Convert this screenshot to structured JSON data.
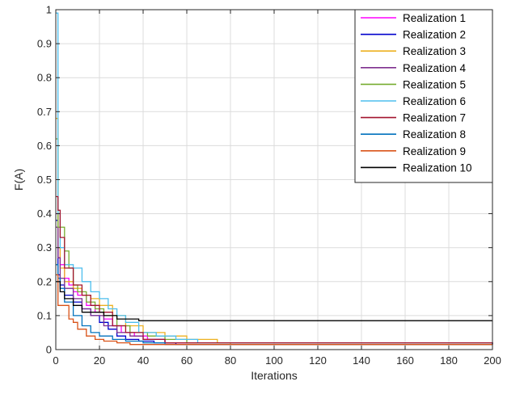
{
  "chart_data": {
    "type": "line",
    "title": "",
    "xlabel": "Iterations",
    "ylabel": "F(A)",
    "xlim": [
      0,
      200
    ],
    "ylim": [
      0,
      1
    ],
    "xticks": [
      0,
      20,
      40,
      60,
      80,
      100,
      120,
      140,
      160,
      180,
      200
    ],
    "yticks": [
      0,
      0.1,
      0.2,
      0.3,
      0.4,
      0.5,
      0.6,
      0.7,
      0.8,
      0.9,
      1
    ],
    "ytick_labels": [
      "0",
      "0.1",
      "0.2",
      "0.3",
      "0.4",
      "0.5",
      "0.6",
      "0.7",
      "0.8",
      "0.9",
      "1"
    ],
    "grid": true,
    "legend_position": "top-right",
    "series": [
      {
        "name": "Realization 1",
        "color": "#ff00ff",
        "x": [
          0,
          1,
          2,
          4,
          6,
          8,
          10,
          14,
          18,
          22,
          26,
          30,
          36,
          42,
          50,
          200
        ],
        "y": [
          0.4,
          0.3,
          0.25,
          0.21,
          0.19,
          0.17,
          0.16,
          0.13,
          0.11,
          0.09,
          0.07,
          0.05,
          0.04,
          0.03,
          0.02,
          0.015
        ]
      },
      {
        "name": "Realization 2",
        "color": "#0000cc",
        "x": [
          0,
          1,
          2,
          4,
          8,
          12,
          16,
          20,
          24,
          28,
          32,
          38,
          45,
          55,
          200
        ],
        "y": [
          0.38,
          0.22,
          0.19,
          0.16,
          0.14,
          0.12,
          0.1,
          0.08,
          0.06,
          0.04,
          0.03,
          0.025,
          0.02,
          0.015,
          0.015
        ]
      },
      {
        "name": "Realization 3",
        "color": "#edb120",
        "x": [
          0,
          1,
          2,
          4,
          8,
          12,
          16,
          20,
          26,
          32,
          40,
          50,
          60,
          68,
          74,
          80,
          200
        ],
        "y": [
          0.68,
          0.3,
          0.24,
          0.2,
          0.18,
          0.16,
          0.15,
          0.13,
          0.1,
          0.07,
          0.05,
          0.04,
          0.03,
          0.03,
          0.02,
          0.015,
          0.015
        ]
      },
      {
        "name": "Realization 4",
        "color": "#7e2f8e",
        "x": [
          0,
          1,
          2,
          4,
          8,
          12,
          16,
          22,
          28,
          34,
          40,
          50,
          200
        ],
        "y": [
          0.36,
          0.27,
          0.21,
          0.18,
          0.15,
          0.12,
          0.1,
          0.07,
          0.05,
          0.04,
          0.03,
          0.02,
          0.015
        ]
      },
      {
        "name": "Realization 5",
        "color": "#77ac30",
        "x": [
          0,
          1,
          2,
          4,
          6,
          8,
          10,
          14,
          18,
          22,
          28,
          34,
          42,
          50,
          60,
          200
        ],
        "y": [
          0.62,
          0.36,
          0.36,
          0.29,
          0.24,
          0.19,
          0.17,
          0.14,
          0.12,
          0.1,
          0.07,
          0.05,
          0.04,
          0.03,
          0.02,
          0.015
        ]
      },
      {
        "name": "Realization 6",
        "color": "#4dbeee",
        "x": [
          0,
          1,
          2,
          4,
          8,
          12,
          16,
          20,
          24,
          28,
          32,
          38,
          46,
          55,
          65,
          200
        ],
        "y": [
          0.99,
          0.4,
          0.3,
          0.25,
          0.24,
          0.2,
          0.17,
          0.15,
          0.12,
          0.1,
          0.08,
          0.05,
          0.04,
          0.03,
          0.02,
          0.015
        ]
      },
      {
        "name": "Realization 7",
        "color": "#a2142f",
        "x": [
          0,
          1,
          2,
          4,
          8,
          12,
          16,
          20,
          26,
          32,
          40,
          50,
          200
        ],
        "y": [
          0.45,
          0.41,
          0.33,
          0.24,
          0.19,
          0.16,
          0.13,
          0.11,
          0.07,
          0.05,
          0.03,
          0.02,
          0.015
        ]
      },
      {
        "name": "Realization 8",
        "color": "#0072bd",
        "x": [
          0,
          1,
          2,
          4,
          8,
          12,
          16,
          20,
          26,
          32,
          40,
          50,
          200
        ],
        "y": [
          0.25,
          0.21,
          0.18,
          0.14,
          0.1,
          0.07,
          0.05,
          0.04,
          0.03,
          0.025,
          0.02,
          0.015,
          0.015
        ]
      },
      {
        "name": "Realization 9",
        "color": "#d95319",
        "x": [
          0,
          1,
          2,
          4,
          6,
          8,
          10,
          14,
          18,
          22,
          28,
          34,
          40,
          200
        ],
        "y": [
          0.22,
          0.13,
          0.13,
          0.13,
          0.09,
          0.08,
          0.06,
          0.04,
          0.03,
          0.025,
          0.02,
          0.015,
          0.015,
          0.015
        ]
      },
      {
        "name": "Realization 10",
        "color": "#000000",
        "x": [
          0,
          1,
          2,
          4,
          8,
          12,
          16,
          22,
          28,
          34,
          38,
          40,
          200
        ],
        "y": [
          0.2,
          0.2,
          0.17,
          0.15,
          0.13,
          0.11,
          0.11,
          0.1,
          0.09,
          0.09,
          0.085,
          0.085,
          0.085
        ]
      }
    ]
  }
}
